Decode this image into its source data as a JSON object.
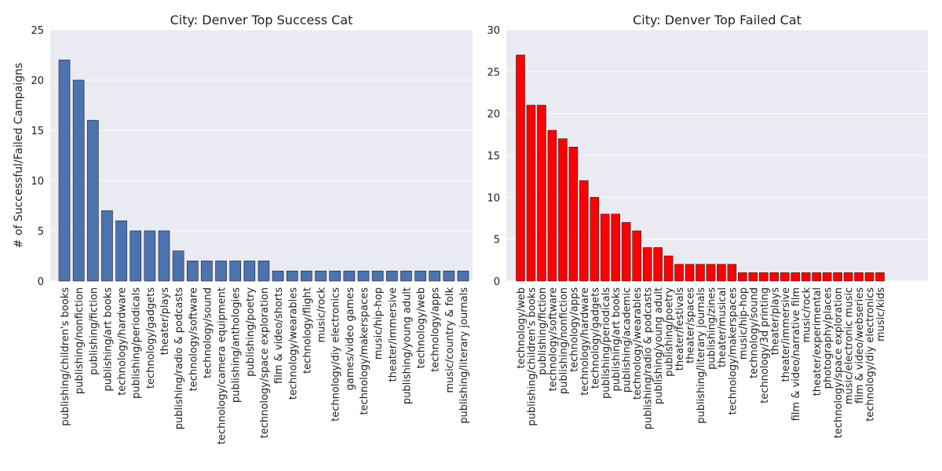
{
  "chart_data": [
    {
      "type": "bar",
      "title": "City: Denver Top Success Cat",
      "ylabel": "# of Successful/Failed Campaigns",
      "xlabel": "",
      "ylim": [
        0,
        25
      ],
      "yticks": [
        0,
        5,
        10,
        15,
        20,
        25
      ],
      "grid": true,
      "bar_color": "#4c72b0",
      "background_color": "#eaeaf2",
      "categories": [
        "publishing/children's books",
        "publishing/nonfiction",
        "publishing/fiction",
        "publishing/art books",
        "technology/hardware",
        "publishing/periodicals",
        "technology/gadgets",
        "theater/plays",
        "publishing/radio & podcasts",
        "technology/software",
        "technology/sound",
        "technology/camera equipment",
        "publishing/anthologies",
        "publishing/poetry",
        "technology/space exploration",
        "film & video/shorts",
        "technology/wearables",
        "technology/flight",
        "music/rock",
        "technology/diy electronics",
        "games/video games",
        "technology/makerspaces",
        "music/hip-hop",
        "theater/immersive",
        "publishing/young adult",
        "technology/web",
        "technology/apps",
        "music/country & folk",
        "publishing/literary journals"
      ],
      "values": [
        22,
        20,
        16,
        7,
        6,
        5,
        5,
        5,
        3,
        2,
        2,
        2,
        2,
        2,
        2,
        1,
        1,
        1,
        1,
        1,
        1,
        1,
        1,
        1,
        1,
        1,
        1,
        1,
        1
      ]
    },
    {
      "type": "bar",
      "title": "City: Denver Top Failed Cat",
      "ylabel": "",
      "xlabel": "",
      "ylim": [
        0,
        30
      ],
      "yticks": [
        0,
        5,
        10,
        15,
        20,
        25,
        30
      ],
      "grid": true,
      "bar_color": "#ff0000",
      "background_color": "#eaeaf2",
      "categories": [
        "technology/web",
        "publishing/children's books",
        "publishing/fiction",
        "technology/software",
        "publishing/nonfiction",
        "technology/apps",
        "technology/hardware",
        "technology/gadgets",
        "publishing/periodicals",
        "publishing/art books",
        "publishing/academic",
        "technology/wearables",
        "publishing/radio & podcasts",
        "publishing/young adult",
        "publishing/poetry",
        "theater/festivals",
        "theater/spaces",
        "publishing/literary journals",
        "publishing/zines",
        "theater/musical",
        "technology/makerspaces",
        "music/hip-hop",
        "technology/sound",
        "technology/3d printing",
        "theater/plays",
        "theater/immersive",
        "film & video/narrative film",
        "music/rock",
        "theater/experimental",
        "photography/places",
        "technology/space exploration",
        "music/electronic music",
        "film & video/webseries",
        "technology/diy electronics",
        "music/kids"
      ],
      "values": [
        27,
        21,
        21,
        18,
        17,
        16,
        12,
        10,
        8,
        8,
        7,
        6,
        4,
        4,
        3,
        2,
        2,
        2,
        2,
        2,
        2,
        1,
        1,
        1,
        1,
        1,
        1,
        1,
        1,
        1,
        1,
        1,
        1,
        1,
        1
      ]
    }
  ]
}
